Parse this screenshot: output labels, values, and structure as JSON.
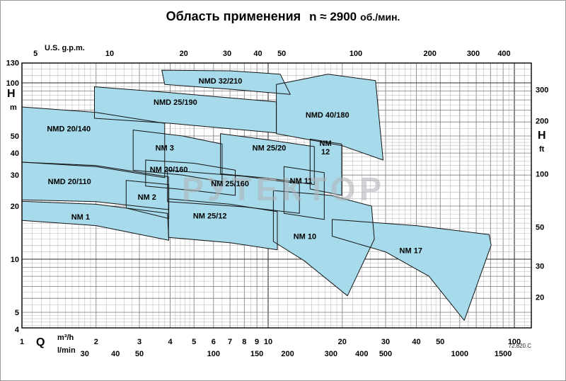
{
  "title": {
    "main": "Область применения",
    "speed": "n ≈ 2900",
    "unit": "об./мин."
  },
  "watermark": "РУТЕКТОР",
  "doc_ref": "72.820.C",
  "axes": {
    "top": {
      "label": "U.S. g.p.m."
    },
    "left": {
      "label": "H",
      "unit": "m"
    },
    "right": {
      "label": "H",
      "unit": "ft"
    },
    "bottom": {
      "label": "Q",
      "unit1": "m³/h",
      "unit2": "l/min"
    }
  },
  "chart_data": {
    "type": "area",
    "title": "Область применения n ≈ 2900 об./мин.",
    "grid": true,
    "x_axis": {
      "label": "Q",
      "scale": "log",
      "unit_primary": "m³/h",
      "range_m3h": [
        1,
        117
      ],
      "ticks_m3h": [
        1,
        2,
        3,
        4,
        5,
        6,
        7,
        8,
        9,
        10,
        20,
        30,
        40,
        50,
        100
      ],
      "ticks_lmin": [
        30,
        40,
        50,
        100,
        150,
        200,
        300,
        400,
        500,
        1000,
        1500
      ],
      "ticks_usgpm": [
        5,
        10,
        20,
        30,
        40,
        50,
        100,
        200,
        300,
        400
      ]
    },
    "y_axis": {
      "label": "H",
      "scale": "log",
      "unit_primary": "m",
      "range_m": [
        4.05,
        130
      ],
      "ticks_m": [
        130,
        100,
        50,
        40,
        30,
        20,
        10,
        5,
        4
      ],
      "ticks_ft": [
        300,
        200,
        100,
        50,
        30,
        20
      ]
    },
    "region_fill": "#a7dbeb",
    "regions": [
      {
        "name": "NMD 25/190",
        "label_at": [
          4.2,
          78
        ],
        "points": [
          [
            1.97,
            95
          ],
          [
            4,
            88
          ],
          [
            10.8,
            78
          ],
          [
            10.8,
            52
          ],
          [
            4,
            59
          ],
          [
            1.97,
            63
          ]
        ]
      },
      {
        "name": "NMD 32/210",
        "label_at": [
          6.4,
          103
        ],
        "points": [
          [
            3.7,
            118
          ],
          [
            7,
            117
          ],
          [
            11.2,
            112
          ],
          [
            12.3,
            86
          ],
          [
            7,
            92
          ],
          [
            3.8,
            98
          ]
        ]
      },
      {
        "name": "NMD 40/180",
        "label_at": [
          17.4,
          66
        ],
        "points": [
          [
            10.8,
            98
          ],
          [
            17.5,
            112
          ],
          [
            27.3,
            103
          ],
          [
            29.3,
            36.5
          ],
          [
            20,
            44
          ],
          [
            10.8,
            51.5
          ]
        ]
      },
      {
        "name": "NMD 20/140",
        "label_at": [
          1.55,
          55
        ],
        "points": [
          [
            1,
            73
          ],
          [
            2,
            68
          ],
          [
            3.8,
            59
          ],
          [
            3.8,
            29
          ],
          [
            2,
            33.5
          ],
          [
            1,
            35.5
          ]
        ]
      },
      {
        "name": "NM 3",
        "label_at": [
          3.8,
          43
        ],
        "points": [
          [
            2.83,
            54
          ],
          [
            4.5,
            50
          ],
          [
            6.5,
            45
          ],
          [
            6.5,
            27.5
          ],
          [
            4.5,
            30
          ],
          [
            2.83,
            32
          ]
        ]
      },
      {
        "name": "NM 25/20",
        "label_at": [
          10.1,
          43
        ],
        "points": [
          [
            6.4,
            51.5
          ],
          [
            10,
            47.5
          ],
          [
            15.4,
            43.5
          ],
          [
            15.4,
            26.5
          ],
          [
            10,
            28.8
          ],
          [
            6.4,
            30.5
          ]
        ]
      },
      {
        "name": "NM 12",
        "label_at": [
          17.1,
          44
        ],
        "label_lines": [
          "NM",
          "12"
        ],
        "points": [
          [
            14.8,
            48
          ],
          [
            19.9,
            45
          ],
          [
            19.9,
            23
          ],
          [
            14.8,
            25
          ]
        ]
      },
      {
        "name": "NM 20/160",
        "label_at": [
          3.95,
          32.4
        ],
        "points": [
          [
            3.18,
            36.5
          ],
          [
            5,
            35
          ],
          [
            7.35,
            32
          ],
          [
            7.35,
            23
          ],
          [
            5,
            24.5
          ],
          [
            3.18,
            26
          ]
        ]
      },
      {
        "name": "NMD 20/110",
        "label_at": [
          1.56,
          27.6
        ],
        "points": [
          [
            1,
            35.5
          ],
          [
            2,
            34
          ],
          [
            3.94,
            29.3
          ],
          [
            3.94,
            19.1
          ],
          [
            2,
            21.2
          ],
          [
            1,
            21.7
          ]
        ]
      },
      {
        "name": "NM 25/160",
        "label_at": [
          7.0,
          26.9
        ],
        "points": [
          [
            3.9,
            32
          ],
          [
            8,
            29.5
          ],
          [
            13.4,
            26.8
          ],
          [
            13.4,
            18.2
          ],
          [
            8,
            19.8
          ],
          [
            3.9,
            21.2
          ]
        ]
      },
      {
        "name": "NM 11",
        "label_at": [
          13.6,
          27.9
        ],
        "points": [
          [
            11.6,
            33.5
          ],
          [
            16.9,
            31
          ],
          [
            16.9,
            16.8
          ],
          [
            11.6,
            18.2
          ]
        ]
      },
      {
        "name": "NM 2",
        "label_at": [
          3.22,
          22.6
        ],
        "points": [
          [
            2.65,
            28
          ],
          [
            3.95,
            26.5
          ],
          [
            3.95,
            17
          ],
          [
            2.65,
            19.5
          ]
        ]
      },
      {
        "name": "NM 25/12",
        "label_at": [
          5.8,
          17.7
        ],
        "points": [
          [
            3.94,
            22
          ],
          [
            7,
            20.5
          ],
          [
            10.9,
            18.6
          ],
          [
            10.9,
            11.3
          ],
          [
            7,
            12.4
          ],
          [
            3.94,
            13.3
          ]
        ]
      },
      {
        "name": "NM 1",
        "label_at": [
          1.73,
          17.4
        ],
        "points": [
          [
            1,
            21.3
          ],
          [
            2,
            20.5
          ],
          [
            3.9,
            18.2
          ],
          [
            3.95,
            12.8
          ],
          [
            2,
            15.5
          ],
          [
            1,
            16.6
          ]
        ]
      },
      {
        "name": "NM 10",
        "label_at": [
          14.1,
          13.5
        ],
        "points": [
          [
            10.5,
            24.5
          ],
          [
            18,
            23
          ],
          [
            26.3,
            20
          ],
          [
            27,
            13
          ],
          [
            21,
            6.2
          ],
          [
            14,
            9.8
          ],
          [
            10.5,
            12.6
          ]
        ]
      },
      {
        "name": "NM 17",
        "label_at": [
          38,
          11.2
        ],
        "points": [
          [
            18.2,
            16.8
          ],
          [
            40,
            15.5
          ],
          [
            79,
            13.8
          ],
          [
            80.5,
            12
          ],
          [
            62.6,
            4.5
          ],
          [
            45,
            8
          ],
          [
            30,
            11
          ],
          [
            18.2,
            13.5
          ]
        ]
      }
    ]
  }
}
